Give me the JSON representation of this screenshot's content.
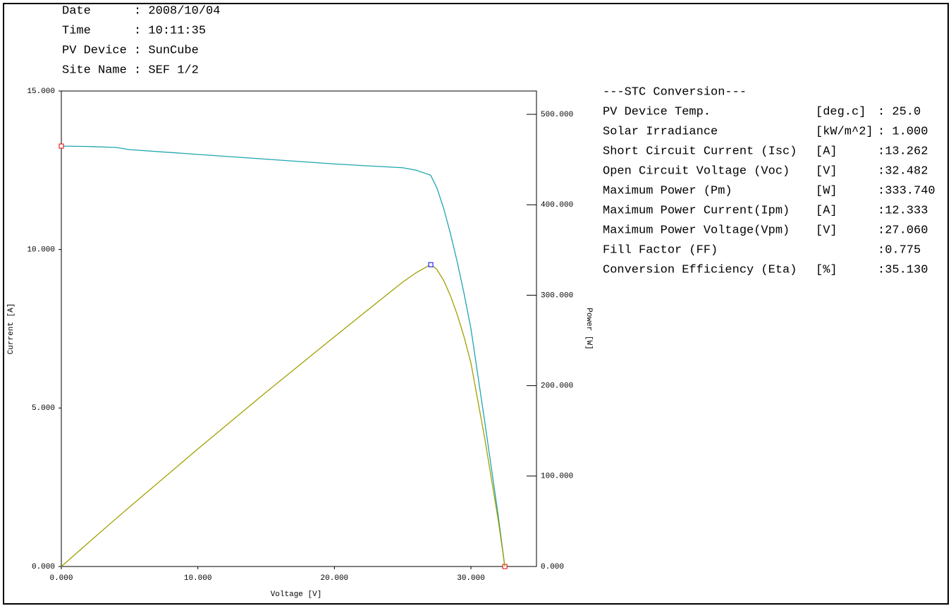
{
  "header": [
    "Date      : 2008/10/04",
    "Time      : 10:11:35",
    "PV Device : SunCube",
    "Site Name : SEF 1/2"
  ],
  "stc": {
    "title": "---STC Conversion---",
    "rows": [
      [
        "PV Device Temp.",
        "[deg.c]",
        ": 25.0"
      ],
      [
        "Solar Irradiance",
        "[kW/m^2]",
        ": 1.000"
      ],
      [
        "Short Circuit Current (Isc)",
        "[A]",
        ":13.262"
      ],
      [
        "Open Circuit Voltage (Voc)",
        "[V]",
        ":32.482"
      ],
      [
        "Maximum Power (Pm)",
        "[W]",
        ":333.740"
      ],
      [
        "Maximum Power Current(Ipm)",
        "[A]",
        ":12.333"
      ],
      [
        "Maximum Power Voltage(Vpm)",
        "[V]",
        ":27.060"
      ],
      [
        "Fill Factor (FF)",
        "",
        ":0.775"
      ],
      [
        "Conversion Efficiency (Eta)",
        "[%]",
        ":35.130"
      ]
    ]
  },
  "chart_data": {
    "type": "line",
    "xlabel": "Voltage [V]",
    "ylabel": "Current [A]",
    "y2label": "Power [W]",
    "x": [
      0,
      2,
      4,
      5,
      10,
      15,
      20,
      22,
      25,
      26,
      27,
      27.06,
      27.5,
      28,
      28.5,
      29,
      29.5,
      30,
      31,
      32,
      32.482
    ],
    "series": [
      {
        "color": "#1fa5b0",
        "values": [
          13.262,
          13.25,
          13.22,
          13.15,
          13.0,
          12.85,
          12.7,
          12.65,
          12.58,
          12.5,
          12.35,
          12.333,
          11.95,
          11.3,
          10.5,
          9.6,
          8.6,
          7.5,
          4.6,
          1.6,
          0
        ],
        "markers": [
          0,
          20
        ],
        "marker_color": "#e00000"
      },
      {
        "color": "#a0a000",
        "axis": "y2",
        "values": [
          0,
          26.5,
          52.9,
          65.8,
          130,
          192.8,
          254,
          278.3,
          314.5,
          325,
          333.5,
          333.74,
          328.6,
          316.4,
          299.3,
          278.4,
          253.7,
          225,
          142.6,
          51.2,
          0
        ],
        "markers": [
          11
        ],
        "marker_color": "#0000ff"
      }
    ],
    "xlim": [
      0,
      34.8
    ],
    "ylim": [
      0,
      15
    ],
    "y2lim": [
      0,
      525.8
    ],
    "xticks": [
      {
        "value": 0,
        "label": "0.000"
      },
      {
        "value": 10,
        "label": "10.000"
      },
      {
        "value": 20,
        "label": "20.000"
      },
      {
        "value": 30,
        "label": "30.000"
      }
    ],
    "yticks": [
      {
        "value": 0,
        "label": "0.000"
      },
      {
        "value": 5,
        "label": "5.000"
      },
      {
        "value": 10,
        "label": "10.000"
      },
      {
        "value": 15,
        "label": "15.000"
      }
    ],
    "y2ticks": [
      {
        "value": 0,
        "label": "0.000"
      },
      {
        "value": 100,
        "label": "100.000"
      },
      {
        "value": 200,
        "label": "200.000"
      },
      {
        "value": 300,
        "label": "300.000"
      },
      {
        "value": 400,
        "label": "400.000"
      },
      {
        "value": 500,
        "label": "500.000"
      }
    ]
  }
}
